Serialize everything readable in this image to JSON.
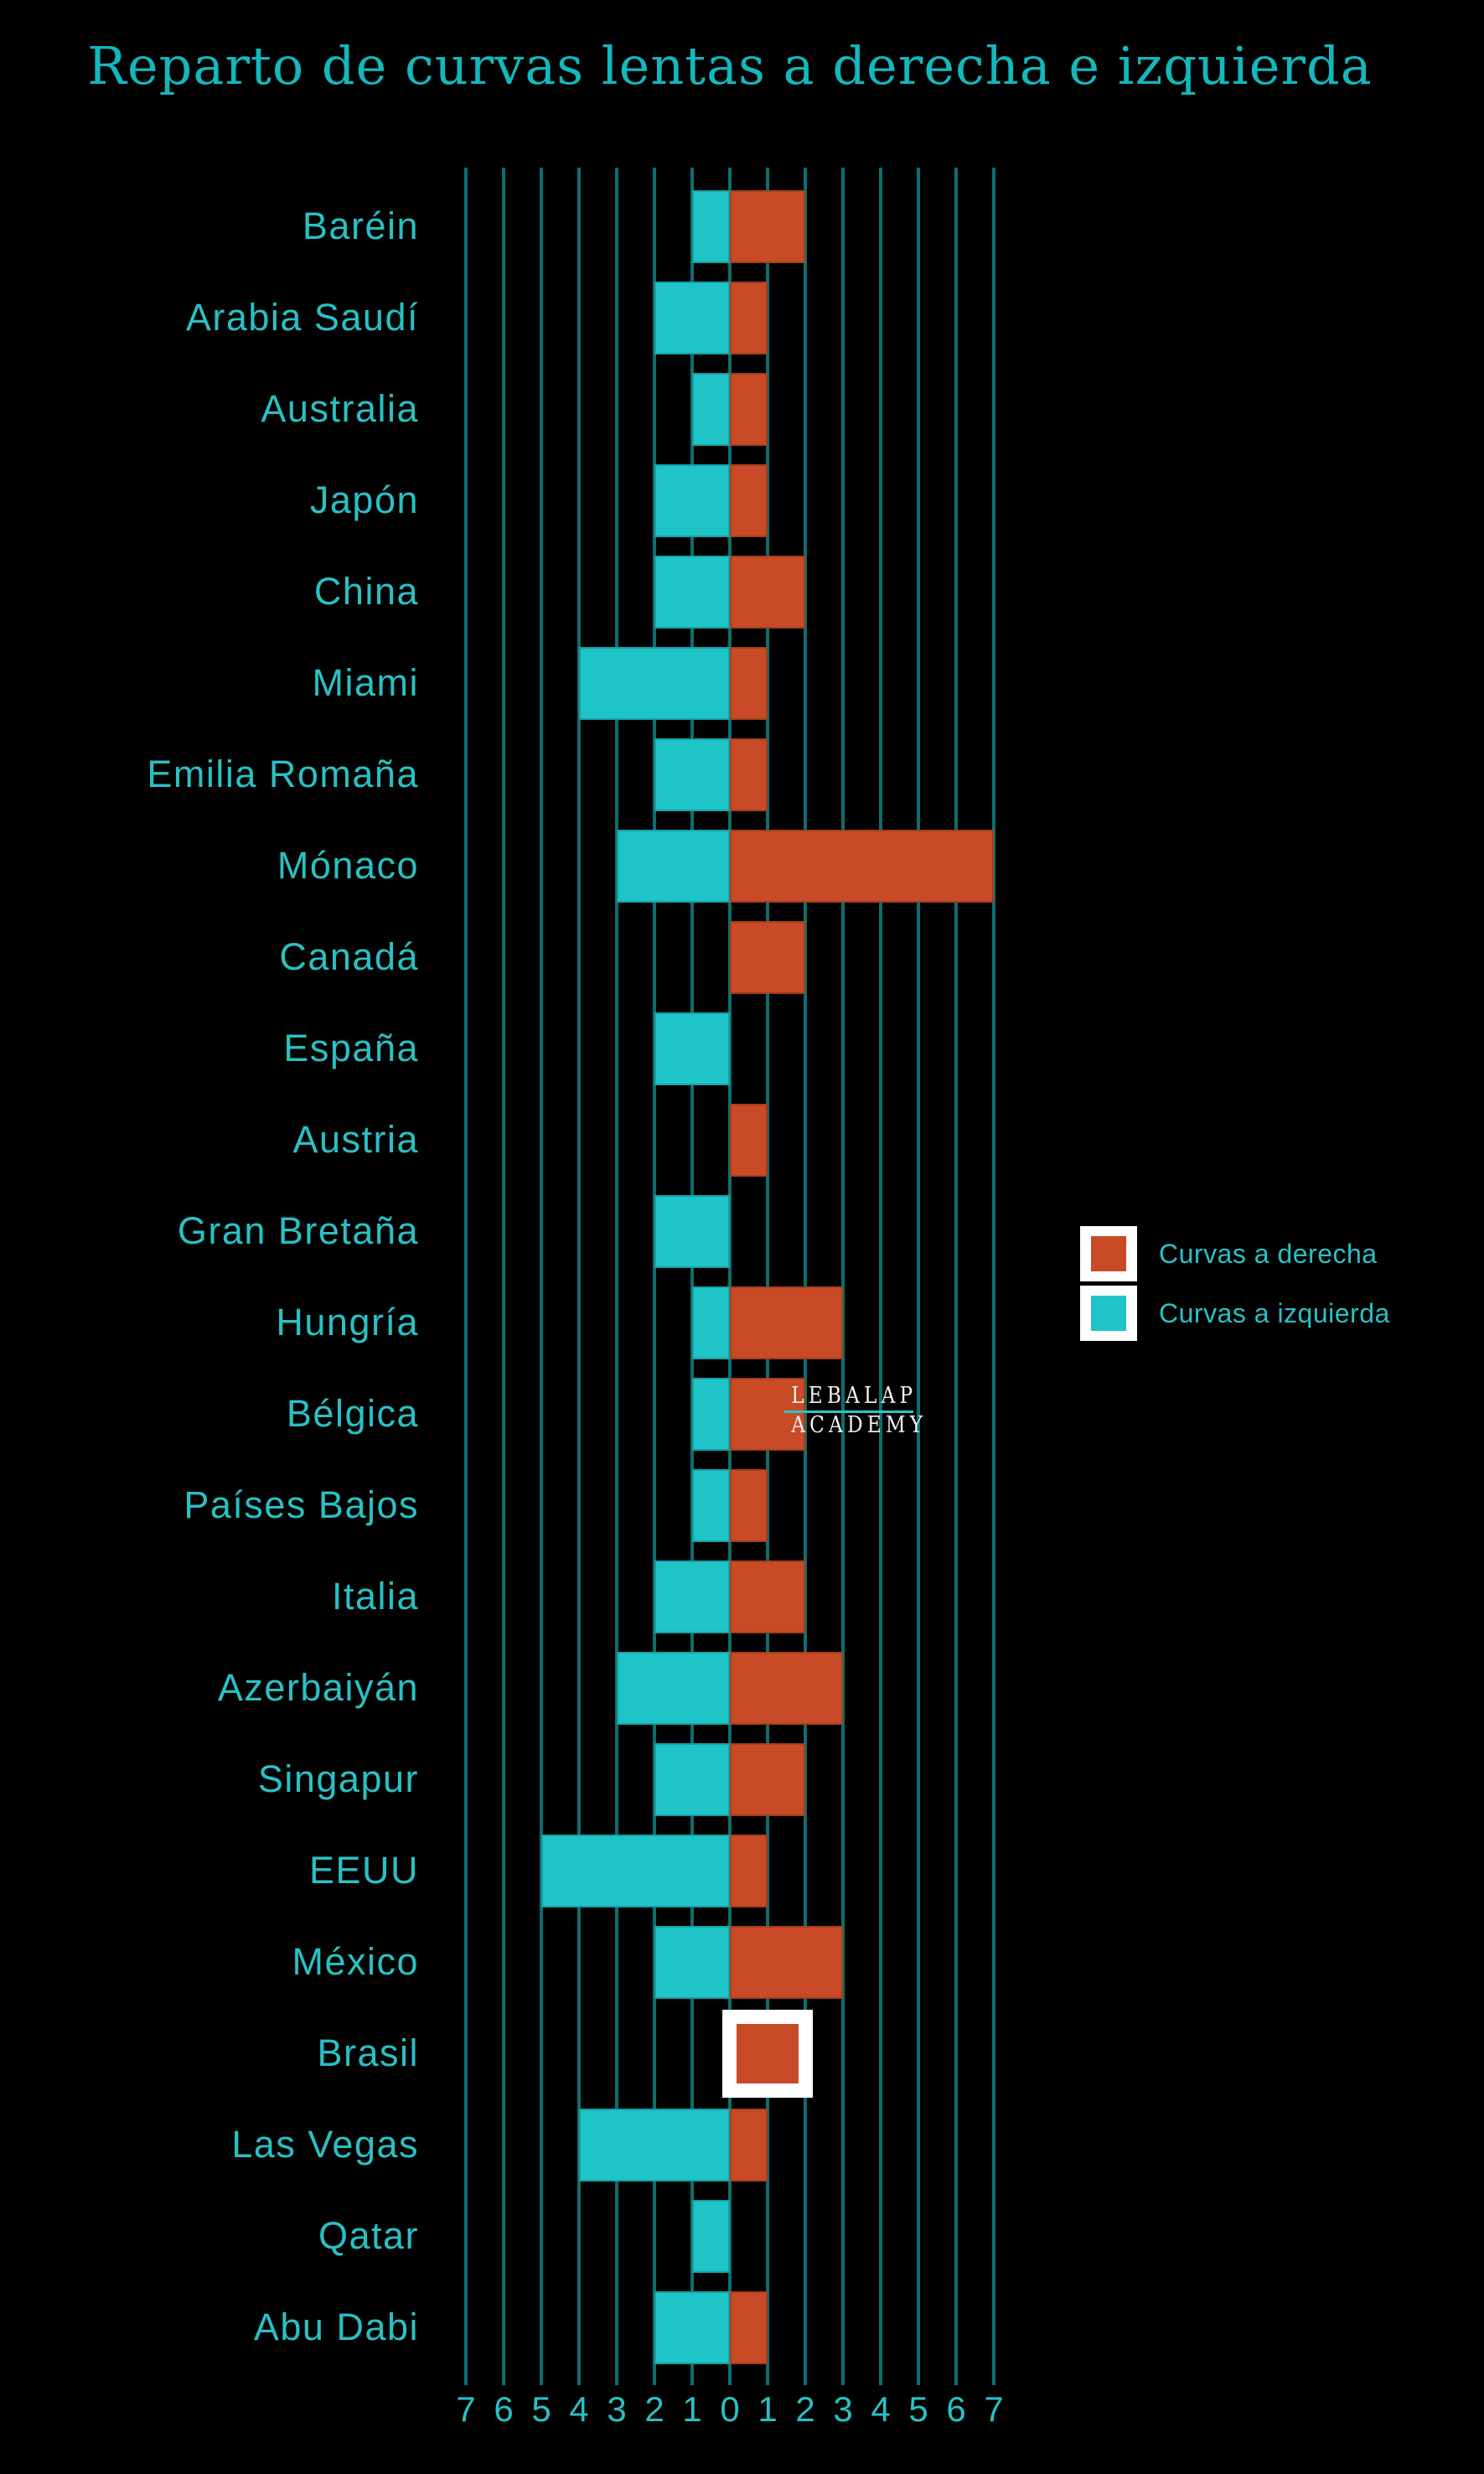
{
  "title": "Reparto de curvas lentas a derecha e izquierda",
  "watermark": {
    "line1": "LEBALAP",
    "line2": "ACADEMY"
  },
  "legend": {
    "items": [
      {
        "label": "Curvas a derecha",
        "color": "#C84A26"
      },
      {
        "label": "Curvas a izquierda",
        "color": "#1EC4C8"
      }
    ]
  },
  "axis": {
    "tick_labels": [
      "7",
      "6",
      "5",
      "4",
      "3",
      "2",
      "1",
      "0",
      "1",
      "2",
      "3",
      "4",
      "5",
      "6",
      "7"
    ]
  },
  "colors": {
    "background": "#000000",
    "gridline": "#0D6E70",
    "right_bar": "#C84A26",
    "left_bar": "#1EC4C8",
    "text": "#2AC0C4",
    "title": "#12B8BC",
    "watermark_text": "#F2F2F2",
    "watermark_line": "#2CC5C5",
    "highlight_frame": "#FFFFFF"
  },
  "chart_data": {
    "type": "bar",
    "orientation": "horizontal-diverging",
    "title": "Reparto de curvas lentas a derecha e izquierda",
    "categories": [
      "Baréin",
      "Arabia Saudí",
      "Australia",
      "Japón",
      "China",
      "Miami",
      "Emilia Romaña",
      "Mónaco",
      "Canadá",
      "España",
      "Austria",
      "Gran Bretaña",
      "Hungría",
      "Bélgica",
      "Países Bajos",
      "Italia",
      "Azerbaiyán",
      "Singapur",
      "EEUU",
      "México",
      "Brasil",
      "Las Vegas",
      "Qatar",
      "Abu Dabi"
    ],
    "series": [
      {
        "name": "Curvas a derecha",
        "direction": "right",
        "color": "#C84A26",
        "values": [
          2,
          1,
          1,
          1,
          2,
          1,
          1,
          7,
          2,
          0,
          1,
          0,
          3,
          2,
          1,
          2,
          3,
          2,
          1,
          3,
          2,
          1,
          0,
          1
        ]
      },
      {
        "name": "Curvas a izquierda",
        "direction": "left",
        "color": "#1EC4C8",
        "values": [
          1,
          2,
          1,
          2,
          2,
          4,
          2,
          3,
          0,
          2,
          0,
          2,
          1,
          1,
          1,
          2,
          3,
          2,
          5,
          2,
          0,
          4,
          1,
          2
        ]
      }
    ],
    "xlim": [
      -7,
      7
    ],
    "x_ticks": [
      7,
      6,
      5,
      4,
      3,
      2,
      1,
      0,
      1,
      2,
      3,
      4,
      5,
      6,
      7
    ],
    "grid": true,
    "legend_position": "middle-right",
    "highlight": {
      "category": "Brasil",
      "style": "white-frame"
    }
  }
}
